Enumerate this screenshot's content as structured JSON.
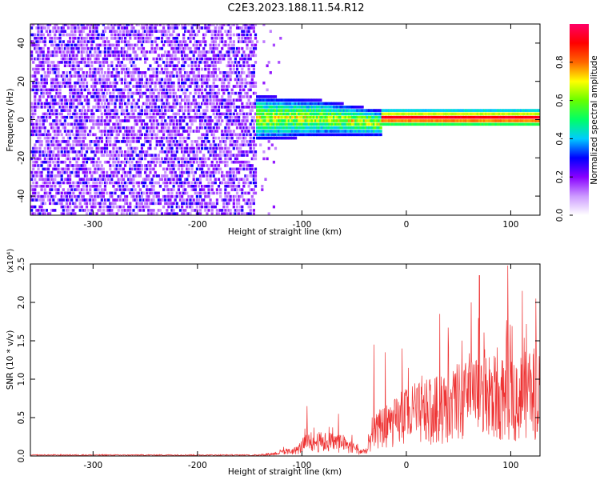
{
  "title": "C2E3.2023.188.11.54.R12",
  "chart_data": [
    {
      "type": "heatmap",
      "xlabel": "Height of straight line (km)",
      "ylabel": "Frequency (Hz)",
      "xlim": [
        -360,
        128
      ],
      "ylim": [
        -50,
        50
      ],
      "xticks": [
        -300,
        -200,
        -100,
        0,
        100
      ],
      "yticks": [
        -40,
        -20,
        0,
        20,
        40
      ],
      "colorbar": {
        "label": "Normalized spectral amplitude",
        "range": [
          0.0,
          1.0
        ],
        "ticks": [
          "0.0",
          "0.2",
          "0.4",
          "0.6",
          "0.8"
        ],
        "colors": [
          "#ffffff",
          "#cc99ff",
          "#8800ff",
          "#0000ff",
          "#00ccff",
          "#00ff66",
          "#66ff00",
          "#ffff00",
          "#ff6600",
          "#ff0000",
          "#ff0066"
        ]
      },
      "features": {
        "noise_region_km": [
          -360,
          -145
        ],
        "signal_onset_km": -145,
        "signal_center_hz": 0,
        "broad_band_km": [
          -145,
          -25
        ],
        "narrow_line_km": [
          -25,
          128
        ]
      }
    },
    {
      "type": "line",
      "xlabel": "Height of straight line (km)",
      "ylabel": "SNR (10 * v/v)",
      "y_multiplier": "(x10⁴)",
      "xlim": [
        -360,
        128
      ],
      "ylim": [
        0,
        2.5
      ],
      "xticks": [
        -300,
        -200,
        -100,
        0,
        100
      ],
      "yticks": [
        "0.0",
        "0.5",
        "1.0",
        "1.5",
        "2.0",
        "2.5"
      ],
      "series": [
        {
          "color": "#ee3333",
          "envelope_x": [
            -360,
            -150,
            -130,
            -105,
            -95,
            -80,
            -70,
            -60,
            -50,
            -45,
            -38,
            -33,
            -28,
            -20,
            -10,
            0,
            10,
            20,
            30,
            40,
            50,
            60,
            70,
            80,
            90,
            100,
            110,
            120,
            128
          ],
          "envelope_y": [
            0.0,
            0.01,
            0.04,
            0.12,
            0.3,
            0.3,
            0.3,
            0.25,
            0.2,
            0.1,
            0.1,
            0.35,
            0.55,
            0.65,
            0.72,
            0.85,
            0.9,
            0.95,
            1.0,
            1.08,
            1.15,
            1.2,
            1.2,
            1.25,
            1.25,
            1.3,
            1.3,
            1.3,
            1.25
          ],
          "peak_x": [
            -95,
            -65,
            -31,
            -20,
            -4,
            32,
            62,
            70,
            97,
            111,
            124
          ],
          "peak_y": [
            0.65,
            0.55,
            1.45,
            1.35,
            1.4,
            1.85,
            2.0,
            2.35,
            2.48,
            2.15,
            2.05
          ]
        }
      ]
    }
  ]
}
